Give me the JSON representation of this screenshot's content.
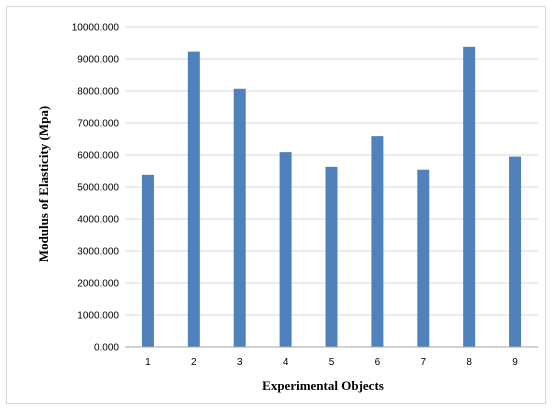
{
  "chart_data": {
    "type": "bar",
    "title": "",
    "xlabel": "Experimental  Objects",
    "ylabel": "Modulus of Elasticity (Mpa)",
    "categories": [
      "1",
      "2",
      "3",
      "4",
      "5",
      "6",
      "7",
      "8",
      "9"
    ],
    "values": [
      5380,
      9230,
      8070,
      6090,
      5630,
      6590,
      5540,
      9380,
      5950
    ],
    "ylim": [
      0,
      10000
    ],
    "y_ticks": [
      "0.000",
      "1000.000",
      "2000.000",
      "3000.000",
      "4000.000",
      "5000.000",
      "6000.000",
      "7000.000",
      "8000.000",
      "9000.000",
      "10000.000"
    ],
    "grid": true,
    "legend": "none",
    "bar_color": "#4f81bd",
    "grid_color": "#d9d9d9"
  }
}
